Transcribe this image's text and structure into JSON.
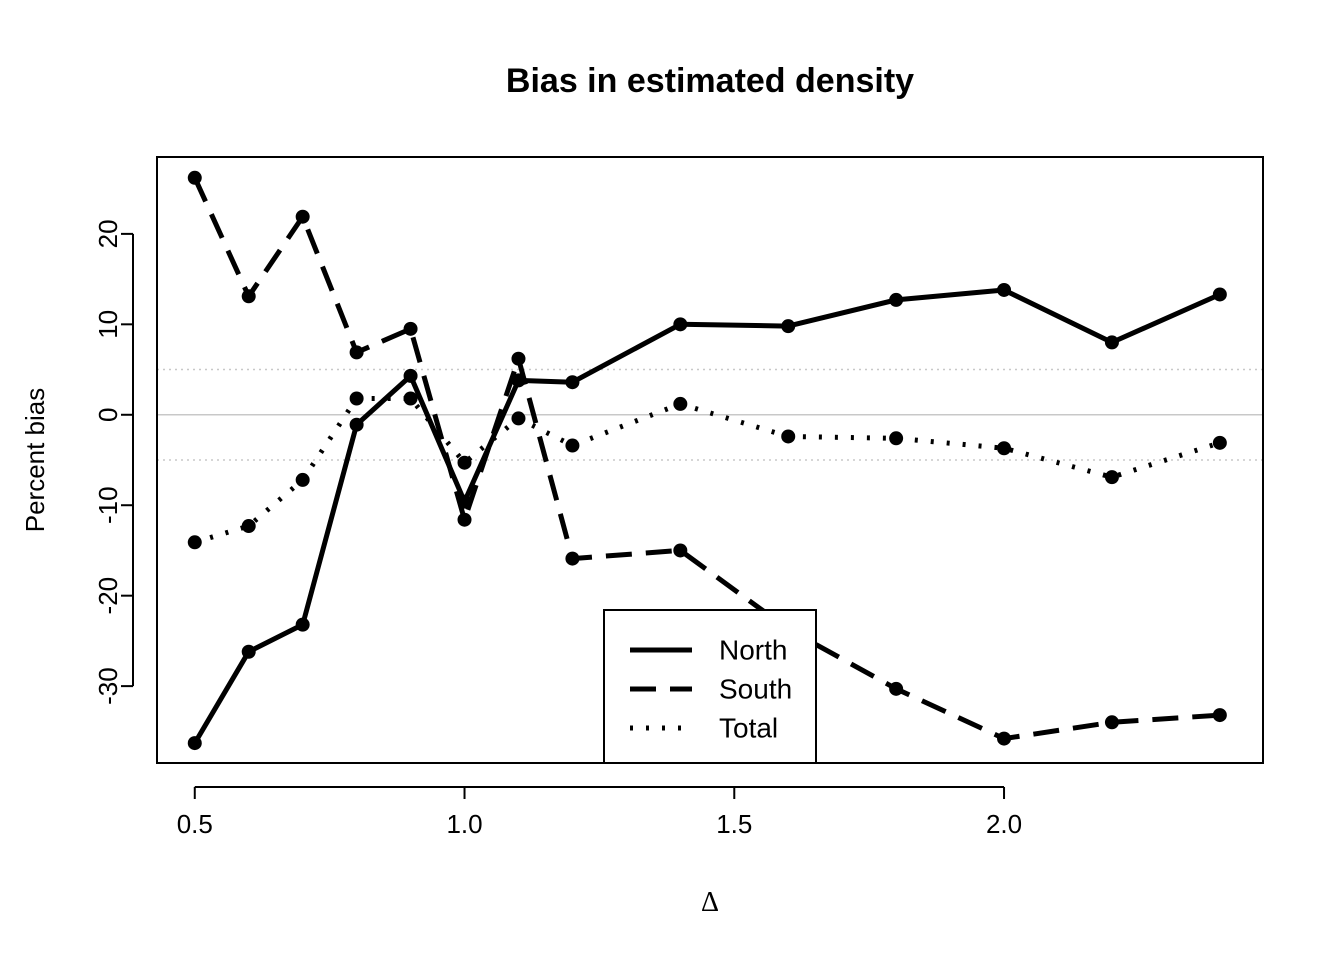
{
  "chart_data": {
    "type": "line",
    "title": "Bias in estimated density",
    "xlabel": "Δ",
    "ylabel": "Percent bias",
    "xlim": [
      0.43,
      2.48
    ],
    "ylim": [
      -38.5,
      28.5
    ],
    "x_ticks": [
      "0.5",
      "1.0",
      "1.5",
      "2.0"
    ],
    "y_ticks": [
      "-30",
      "-20",
      "-10",
      "0",
      "10",
      "20"
    ],
    "x": [
      0.5,
      0.6,
      0.7,
      0.8,
      0.9,
      1.0,
      1.1,
      1.2,
      1.4,
      1.6,
      1.8,
      2.0,
      2.2,
      2.4
    ],
    "reference_lines": [
      {
        "y": 0,
        "style": "solid",
        "color": "#c8c8c8"
      },
      {
        "y": 5,
        "style": "dotted",
        "color": "#c8c8c8"
      },
      {
        "y": -5,
        "style": "dotted",
        "color": "#c8c8c8"
      }
    ],
    "series": [
      {
        "name": "North",
        "dash": "solid",
        "values": [
          -36.3,
          -26.2,
          -23.2,
          -1.1,
          4.3,
          -9.6,
          3.8,
          3.6,
          10.0,
          9.8,
          12.7,
          13.8,
          8.0,
          13.3
        ]
      },
      {
        "name": "South",
        "dash": "dashed",
        "values": [
          26.2,
          13.1,
          21.9,
          6.9,
          9.5,
          -11.6,
          6.2,
          -15.9,
          -15.0,
          -23.7,
          -30.3,
          -35.8,
          -34.0,
          -33.2
        ]
      },
      {
        "name": "Total",
        "dash": "dotted",
        "values": [
          -14.1,
          -12.3,
          -7.2,
          1.8,
          1.8,
          -5.3,
          -0.4,
          -3.4,
          1.2,
          -2.4,
          -2.6,
          -3.7,
          -6.9,
          -3.1
        ]
      }
    ],
    "legend": {
      "placement": "bottom-center",
      "entries": [
        "North",
        "South",
        "Total"
      ]
    },
    "grid": false
  }
}
